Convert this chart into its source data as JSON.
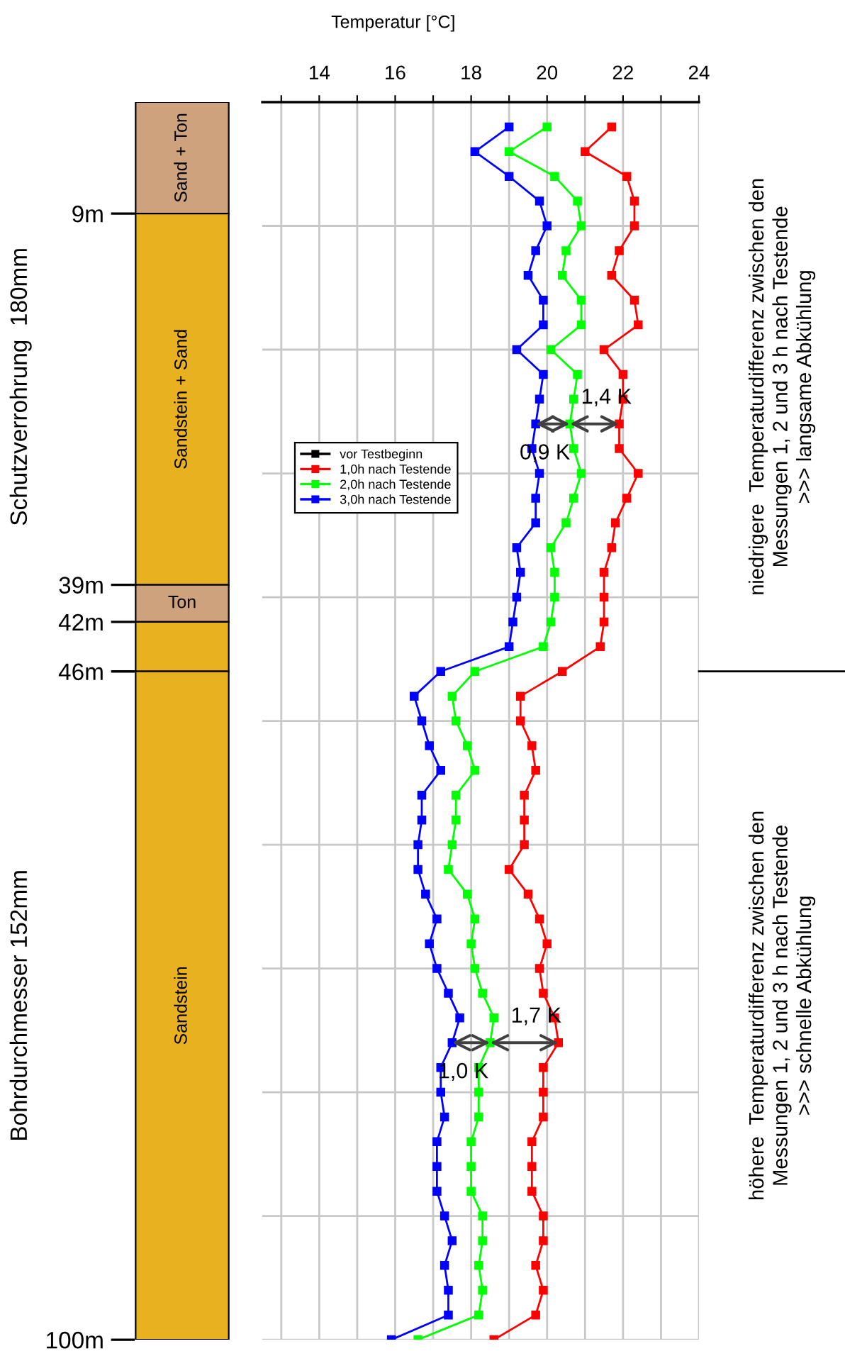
{
  "chart_data": [
    {
      "type": "bar",
      "stacked": true,
      "categories": [
        null
      ],
      "ylim": [
        100,
        0
      ],
      "yticks": [
        {
          "value": 9,
          "label": "9m"
        },
        {
          "value": 39,
          "label": "39m"
        },
        {
          "value": 42,
          "label": "42m"
        },
        {
          "value": 46,
          "label": "46m"
        },
        {
          "value": 100,
          "label": "100m"
        }
      ],
      "tick_labels": "y",
      "series": [
        {
          "name": "Sand + Ton",
          "color": "#cfa27e",
          "values": [
            9
          ]
        },
        {
          "name": "Sandstein + Sand",
          "color": "#e8b120",
          "values": [
            30
          ]
        },
        {
          "name": "Ton",
          "color": "#cfa27e",
          "values": [
            3
          ]
        },
        {
          "color": "#e8b120",
          "values": [
            4
          ]
        },
        {
          "name": "Sandstein",
          "color": "#e8b120",
          "values": [
            54
          ]
        }
      ],
      "annotations": [
        "Schutzverrohrung  180mm",
        "Bohrdurchmesser 152mm"
      ]
    },
    {
      "type": "line",
      "xlabel": "Temperatur [°C]",
      "xlim": [
        12.5,
        24
      ],
      "xticks": [
        {
          "value": 13,
          "label": null
        },
        14,
        {
          "value": 15,
          "label": null
        },
        16,
        {
          "value": 17,
          "label": null
        },
        18,
        {
          "value": 19,
          "label": null
        },
        20,
        {
          "value": 21,
          "label": null
        },
        22,
        {
          "value": 23,
          "label": null
        },
        24
      ],
      "ylim": [
        100,
        0
      ],
      "yticks": [
        {
          "value": 10,
          "label": null
        },
        {
          "value": 20,
          "label": null
        },
        {
          "value": 30,
          "label": null
        },
        {
          "value": 40,
          "label": null
        },
        {
          "value": 50,
          "label": null
        },
        {
          "value": 60,
          "label": null
        },
        {
          "value": 70,
          "label": null
        },
        {
          "value": 80,
          "label": null
        },
        {
          "value": 90,
          "label": null
        },
        {
          "value": 100,
          "label": null
        }
      ],
      "tick_labels": "x",
      "grid": true,
      "legend": "left",
      "marker": "square",
      "line_style": "solid",
      "series": [
        {
          "name": "vor Testbeginn",
          "color": "#000000",
          "x": [
            null
          ],
          "values": [
            null
          ]
        },
        {
          "name": "1,0h nach Testende",
          "color": "#ff0000",
          "values": [
            2,
            4,
            6,
            8,
            10,
            12,
            14,
            16,
            18,
            20,
            22,
            24,
            26,
            28,
            30,
            32,
            34,
            36,
            38,
            40,
            42,
            44,
            46,
            48,
            50,
            52,
            54,
            56,
            58,
            60,
            62,
            64,
            66,
            68,
            70,
            72,
            74,
            76,
            78,
            80,
            82,
            84,
            86,
            88,
            90,
            92,
            94,
            96,
            98,
            100
          ],
          "x": [
            21.7,
            21.0,
            22.1,
            22.3,
            22.3,
            21.9,
            21.7,
            22.3,
            22.4,
            21.5,
            22.0,
            22.0,
            21.9,
            21.9,
            22.4,
            22.1,
            21.8,
            21.7,
            21.5,
            21.5,
            21.5,
            21.4,
            20.4,
            19.3,
            19.3,
            19.6,
            19.7,
            19.4,
            19.4,
            19.4,
            19.0,
            19.5,
            19.8,
            20.0,
            19.8,
            19.9,
            20.2,
            20.3,
            19.9,
            19.9,
            19.9,
            19.6,
            19.6,
            19.6,
            19.9,
            19.9,
            19.7,
            19.9,
            19.7,
            18.6
          ]
        },
        {
          "name": "2,0h nach Testende",
          "color": "#00ff00",
          "values": [
            2,
            4,
            6,
            8,
            10,
            12,
            14,
            16,
            18,
            20,
            22,
            24,
            26,
            28,
            30,
            32,
            34,
            36,
            38,
            40,
            42,
            44,
            46,
            48,
            50,
            52,
            54,
            56,
            58,
            60,
            62,
            64,
            66,
            68,
            70,
            72,
            74,
            76,
            78,
            80,
            82,
            84,
            86,
            88,
            90,
            92,
            94,
            96,
            98,
            100
          ],
          "x": [
            20.0,
            19.0,
            20.2,
            20.8,
            20.9,
            20.5,
            20.4,
            20.9,
            20.9,
            20.1,
            20.8,
            20.7,
            20.6,
            20.7,
            20.9,
            20.7,
            20.5,
            20.1,
            20.2,
            20.2,
            20.1,
            19.9,
            18.1,
            17.5,
            17.6,
            17.9,
            18.1,
            17.6,
            17.6,
            17.5,
            17.4,
            17.9,
            18.1,
            18.0,
            18.1,
            18.3,
            18.6,
            18.5,
            18.2,
            18.2,
            18.2,
            18.0,
            18.0,
            18.0,
            18.3,
            18.3,
            18.2,
            18.3,
            18.2,
            16.6
          ]
        },
        {
          "name": "3,0h nach Testende",
          "color": "#0000ff",
          "values": [
            2,
            4,
            6,
            8,
            10,
            12,
            14,
            16,
            18,
            20,
            22,
            24,
            26,
            28,
            30,
            32,
            34,
            36,
            38,
            40,
            42,
            44,
            46,
            48,
            50,
            52,
            54,
            56,
            58,
            60,
            62,
            64,
            66,
            68,
            70,
            72,
            74,
            76,
            78,
            80,
            82,
            84,
            86,
            88,
            90,
            92,
            94,
            96,
            98,
            100
          ],
          "x": [
            19.0,
            18.1,
            19.0,
            19.8,
            20.0,
            19.7,
            19.5,
            19.9,
            19.9,
            19.2,
            19.9,
            19.8,
            19.7,
            19.6,
            19.8,
            19.7,
            19.7,
            19.2,
            19.3,
            19.2,
            19.1,
            19.0,
            17.2,
            16.5,
            16.7,
            16.9,
            17.2,
            16.7,
            16.7,
            16.6,
            16.6,
            16.8,
            17.1,
            16.9,
            17.1,
            17.4,
            17.7,
            17.5,
            17.2,
            17.2,
            17.3,
            17.1,
            17.1,
            17.1,
            17.3,
            17.5,
            17.3,
            17.4,
            17.4,
            15.9
          ]
        }
      ],
      "annotations": [
        {
          "text": "1,4 K",
          "x": 20.6,
          "y": 26
        },
        {
          "text": "0,9 K",
          "x": 19.7,
          "y": 26
        },
        {
          "text": "1,7 K",
          "x": 18.5,
          "y": 76
        },
        {
          "text": "1,0 K",
          "x": 17.5,
          "y": 76
        },
        "niedrigere  Temperaturdifferenz zwischen den\nMessungen 1, 2 und 3 h nach Testende\n>>> langsame Abkühlung",
        "höhere  Temperaturdifferenz zwischen den\nMessungen 1, 2 und 3 h nach Testende\n>>> schnelle Abkühlung"
      ]
    }
  ]
}
